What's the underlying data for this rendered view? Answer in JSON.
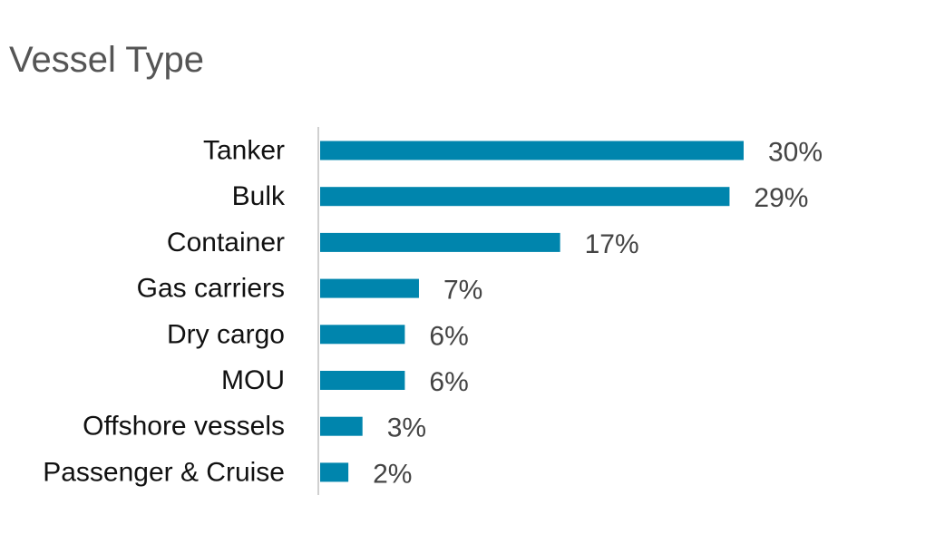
{
  "chart_data": {
    "type": "bar",
    "orientation": "horizontal",
    "title": "Vessel Type",
    "categories": [
      "Tanker",
      "Bulk",
      "Container",
      "Gas carriers",
      "Dry cargo",
      "MOU",
      "Offshore vessels",
      "Passenger & Cruise"
    ],
    "values": [
      30,
      29,
      17,
      7,
      6,
      6,
      3,
      2
    ],
    "value_labels": [
      "30%",
      "29%",
      "17%",
      "7%",
      "6%",
      "6%",
      "3%",
      "2%"
    ],
    "unit": "%",
    "xlabel": "",
    "ylabel": "",
    "xlim": [
      0,
      30
    ],
    "grid": false,
    "legend": "none",
    "bar_color": "#0085ad",
    "axis_color": "#d0d0d0"
  }
}
